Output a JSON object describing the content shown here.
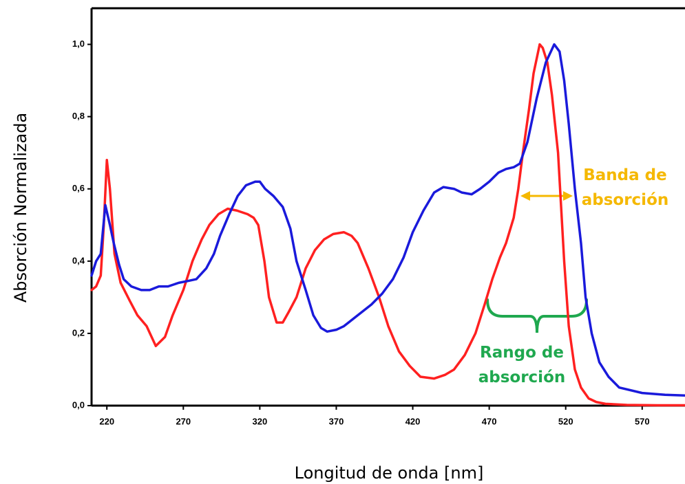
{
  "chart_data": {
    "type": "line",
    "xlabel": "Longitud de onda [nm]",
    "ylabel": "Absorción Normalizada",
    "xlim": [
      210,
      598
    ],
    "ylim": [
      0,
      1.1
    ],
    "xticks": [
      220,
      270,
      320,
      370,
      420,
      470,
      520,
      570
    ],
    "yticks": [
      {
        "value": 0,
        "label": "0,0"
      },
      {
        "value": 0.2,
        "label": "0,2"
      },
      {
        "value": 0.4,
        "label": "0,4"
      },
      {
        "value": 0.6,
        "label": "0,6"
      },
      {
        "value": 0.8,
        "label": "0,8"
      },
      {
        "value": 1,
        "label": "1,0"
      }
    ],
    "series": [
      {
        "color": "#ff2020",
        "x": [
          210,
          213,
          216,
          218,
          220,
          222,
          225,
          229,
          235,
          240,
          246,
          252,
          258,
          263,
          270,
          276,
          282,
          287,
          293,
          299,
          305,
          312,
          316,
          319,
          323,
          326,
          331,
          335,
          339,
          344,
          350,
          356,
          362,
          368,
          375,
          380,
          384,
          391,
          398,
          404,
          411,
          418,
          425,
          434,
          441,
          447,
          454,
          461,
          467,
          472,
          477,
          481,
          486,
          489,
          492,
          496,
          499,
          503,
          505,
          508,
          511,
          515,
          517,
          519,
          522,
          526,
          530,
          535,
          540,
          546,
          560,
          580,
          598
        ],
        "values": [
          0.32,
          0.33,
          0.36,
          0.5,
          0.68,
          0.6,
          0.42,
          0.34,
          0.29,
          0.25,
          0.22,
          0.165,
          0.19,
          0.25,
          0.32,
          0.4,
          0.46,
          0.5,
          0.53,
          0.545,
          0.54,
          0.53,
          0.52,
          0.5,
          0.4,
          0.3,
          0.23,
          0.23,
          0.26,
          0.3,
          0.38,
          0.43,
          0.46,
          0.475,
          0.48,
          0.47,
          0.45,
          0.38,
          0.3,
          0.22,
          0.15,
          0.11,
          0.08,
          0.075,
          0.085,
          0.1,
          0.14,
          0.2,
          0.28,
          0.35,
          0.41,
          0.45,
          0.52,
          0.6,
          0.7,
          0.82,
          0.92,
          1.0,
          0.99,
          0.95,
          0.86,
          0.7,
          0.55,
          0.4,
          0.22,
          0.1,
          0.05,
          0.02,
          0.01,
          0.005,
          0.002,
          0.001,
          0.001
        ]
      },
      {
        "color": "#1a1adb",
        "x": [
          210,
          213,
          216,
          219,
          222,
          224.5,
          228,
          231,
          236,
          242.5,
          248,
          254,
          260,
          267,
          273,
          278.5,
          285,
          290,
          294,
          300,
          305.5,
          311,
          317,
          320,
          323.5,
          329,
          335,
          340,
          344,
          350,
          355,
          360,
          364,
          370,
          375,
          384,
          393,
          400,
          407,
          414,
          420,
          427,
          434,
          440,
          447,
          452,
          458.5,
          464,
          470,
          476,
          481,
          486,
          490,
          495,
          501,
          507,
          512.5,
          516,
          519,
          522,
          526,
          530,
          533,
          537,
          542,
          548,
          555,
          570,
          585,
          598
        ],
        "values": [
          0.36,
          0.4,
          0.42,
          0.555,
          0.5,
          0.45,
          0.39,
          0.35,
          0.33,
          0.32,
          0.32,
          0.33,
          0.33,
          0.34,
          0.345,
          0.35,
          0.38,
          0.42,
          0.47,
          0.53,
          0.58,
          0.61,
          0.62,
          0.62,
          0.6,
          0.58,
          0.55,
          0.49,
          0.4,
          0.32,
          0.25,
          0.215,
          0.205,
          0.21,
          0.22,
          0.25,
          0.28,
          0.31,
          0.35,
          0.41,
          0.48,
          0.54,
          0.59,
          0.605,
          0.6,
          0.59,
          0.585,
          0.6,
          0.62,
          0.645,
          0.655,
          0.66,
          0.67,
          0.73,
          0.85,
          0.95,
          1.0,
          0.98,
          0.9,
          0.78,
          0.6,
          0.45,
          0.3,
          0.2,
          0.12,
          0.08,
          0.05,
          0.035,
          0.03,
          0.028
        ]
      }
    ],
    "annotations": [
      {
        "text": [
          "Banda de",
          "absorción"
        ],
        "color": "#f5b800"
      },
      {
        "text": [
          "Rango de",
          "absorción"
        ],
        "color": "#1fa84f"
      }
    ]
  }
}
